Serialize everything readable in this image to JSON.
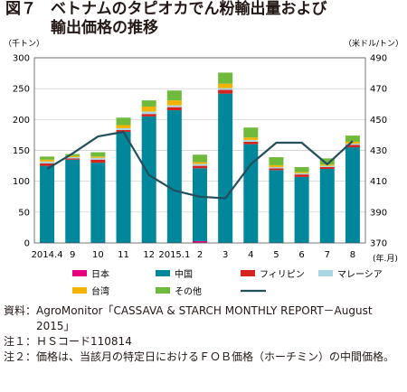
{
  "title": {
    "figure": "図７",
    "line1": "ベトナムのタピオカでん粉輸出量および",
    "line2": "輸出価格の推移"
  },
  "chart_data": {
    "type": "bar",
    "stacked": true,
    "left_unit": "（千トン）",
    "right_unit": "（米ドル/トン）",
    "x_unit": "(年.月)",
    "categories": [
      "2014.4",
      "9",
      "10",
      "11",
      "12",
      "2015.1",
      "2",
      "3",
      "4",
      "5",
      "6",
      "7",
      "8"
    ],
    "ylim": [
      0,
      300
    ],
    "yticks": [
      0,
      50,
      100,
      150,
      200,
      250,
      300
    ],
    "y2lim": [
      370,
      490
    ],
    "y2ticks": [
      370,
      390,
      410,
      430,
      450,
      470,
      490
    ],
    "series": [
      {
        "name": "日本",
        "color": "#e4007f",
        "values": [
          0,
          0,
          0,
          0,
          0,
          0,
          3,
          0,
          0,
          0,
          0,
          0,
          0
        ]
      },
      {
        "name": "中国",
        "color": "#00879b",
        "values": [
          125,
          135,
          130,
          180,
          205,
          215,
          118,
          242,
          160,
          118,
          107,
          120,
          155
        ]
      },
      {
        "name": "フィリピン",
        "color": "#d7231e",
        "values": [
          4,
          2,
          5,
          3,
          4,
          5,
          4,
          6,
          4,
          3,
          4,
          3,
          4
        ]
      },
      {
        "name": "マレーシア",
        "color": "#a9d7e6",
        "values": [
          3,
          2,
          3,
          3,
          4,
          3,
          3,
          3,
          3,
          2,
          2,
          2,
          2
        ]
      },
      {
        "name": "台湾",
        "color": "#f3b300",
        "values": [
          3,
          2,
          2,
          5,
          8,
          8,
          3,
          7,
          4,
          3,
          2,
          2,
          3
        ]
      },
      {
        "name": "その他",
        "color": "#6fb93b",
        "values": [
          5,
          3,
          7,
          12,
          10,
          16,
          12,
          18,
          16,
          13,
          8,
          10,
          10
        ]
      }
    ],
    "line": {
      "color": "#234f5c",
      "values": [
        418,
        428,
        439,
        442,
        414,
        404,
        400,
        399,
        421,
        435,
        435,
        421,
        436
      ]
    },
    "legend": [
      "日本",
      "中国",
      "フィリピン",
      "マレーシア",
      "台湾",
      "その他",
      ""
    ]
  },
  "notes": [
    {
      "label": "資料：",
      "text": "AgroMonitor「CASSAVA & STARCH MONTHLY REPORT－August 2015」"
    },
    {
      "label": "注１：",
      "text": "ＨＳコード110814"
    },
    {
      "label": "注２：",
      "text": "価格は、当該月の特定日におけるＦＯＢ価格（ホーチミン）の中間価格。"
    }
  ]
}
